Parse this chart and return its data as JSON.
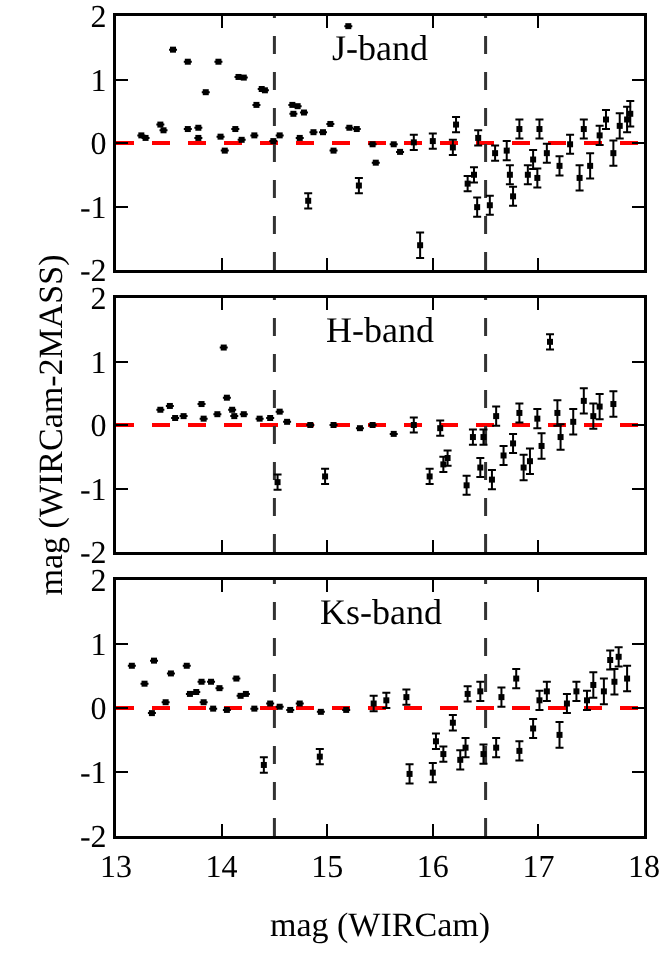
{
  "chart_data": [
    {
      "type": "scatter",
      "annotations": [
        "J-band"
      ],
      "xlim": [
        13,
        18
      ],
      "xticks": [
        13,
        14,
        15,
        16,
        17,
        18
      ],
      "ylim": [
        -2,
        2
      ],
      "yticks": [
        -2,
        -1,
        0,
        1,
        2
      ],
      "tick_labels": "y",
      "marker": "square",
      "ref_lines": [
        {
          "axis": "y",
          "value": 0,
          "color": "#ff0000",
          "line_style": "dashed"
        },
        {
          "axis": "x",
          "value": 14.5,
          "color": "#333333",
          "line_style": "dashed"
        },
        {
          "axis": "x",
          "value": 16.5,
          "color": "#333333",
          "line_style": "dashed"
        }
      ],
      "x": [
        13.24,
        13.28,
        13.42,
        13.45,
        13.54,
        13.68,
        13.68,
        13.78,
        13.78,
        13.85,
        13.97,
        13.99,
        14.03,
        14.13,
        14.16,
        14.21,
        14.19,
        14.33,
        14.38,
        14.41,
        14.31,
        14.49,
        14.55,
        14.67,
        14.72,
        14.68,
        14.78,
        14.74,
        14.82,
        14.87,
        14.96,
        15.03,
        15.06,
        15.2,
        15.21,
        15.28,
        15.3,
        15.43,
        15.46,
        15.63,
        15.69,
        15.82,
        15.88,
        16.0,
        16.19,
        16.22,
        16.33,
        16.39,
        16.42,
        16.43,
        16.54,
        16.59,
        16.7,
        16.73,
        16.76,
        16.82,
        16.9,
        16.95,
        16.99,
        17.01,
        17.08,
        17.2,
        17.3,
        17.39,
        17.43,
        17.49,
        17.58,
        17.64,
        17.71,
        17.77,
        17.84,
        17.87
      ],
      "series": [
        {
          "color": "#000000",
          "values": [
            0.12,
            0.08,
            0.29,
            0.2,
            1.47,
            1.28,
            0.22,
            0.24,
            0.08,
            0.8,
            1.28,
            0.1,
            -0.12,
            0.22,
            1.04,
            1.03,
            0.05,
            0.6,
            0.85,
            0.83,
            0.12,
            0.03,
            0.12,
            0.6,
            0.58,
            0.46,
            0.48,
            0.08,
            -0.91,
            0.17,
            0.17,
            0.3,
            -0.12,
            1.84,
            0.24,
            0.22,
            -0.67,
            -0.02,
            -0.31,
            -0.02,
            -0.14,
            0.01,
            -1.61,
            0.03,
            -0.07,
            0.29,
            -0.64,
            -0.5,
            -1.01,
            0.08,
            -0.98,
            -0.16,
            -0.12,
            -0.5,
            -0.84,
            0.22,
            -0.5,
            -0.26,
            -0.55,
            0.22,
            -0.16,
            -0.36,
            -0.02,
            -0.55,
            0.22,
            -0.36,
            0.12,
            0.37,
            -0.16,
            0.27,
            0.37,
            0.46
          ],
          "errors": [
            null,
            null,
            null,
            null,
            null,
            null,
            null,
            null,
            null,
            null,
            null,
            null,
            null,
            null,
            null,
            null,
            null,
            null,
            null,
            null,
            null,
            null,
            null,
            null,
            null,
            null,
            null,
            null,
            0.12,
            null,
            null,
            null,
            null,
            null,
            null,
            null,
            0.12,
            null,
            null,
            null,
            null,
            0.12,
            0.2,
            0.12,
            0.12,
            0.12,
            0.12,
            0.12,
            0.15,
            0.12,
            0.15,
            0.12,
            0.15,
            0.15,
            0.15,
            0.15,
            0.15,
            0.15,
            0.15,
            0.15,
            0.15,
            0.15,
            0.15,
            0.2,
            0.15,
            0.2,
            0.15,
            0.15,
            0.2,
            0.2,
            0.2,
            0.2
          ]
        }
      ]
    },
    {
      "type": "scatter",
      "annotations": [
        "H-band"
      ],
      "ylabel": "mag (WIRCam-2MASS)",
      "xlim": [
        13,
        18
      ],
      "xticks": [
        13,
        14,
        15,
        16,
        17,
        18
      ],
      "ylim": [
        -2,
        2
      ],
      "yticks": [
        -2,
        -1,
        0,
        1,
        2
      ],
      "tick_labels": "y",
      "marker": "square",
      "ref_lines": [
        {
          "axis": "y",
          "value": 0,
          "color": "#ff0000",
          "line_style": "dashed"
        },
        {
          "axis": "x",
          "value": 14.5,
          "color": "#333333",
          "line_style": "dashed"
        },
        {
          "axis": "x",
          "value": 16.5,
          "color": "#333333",
          "line_style": "dashed"
        }
      ],
      "x": [
        13.42,
        13.51,
        13.56,
        13.64,
        13.81,
        13.83,
        14.02,
        13.96,
        14.05,
        14.1,
        14.12,
        14.21,
        14.36,
        14.46,
        14.53,
        14.55,
        14.62,
        14.84,
        14.98,
        15.06,
        15.31,
        15.43,
        15.63,
        15.82,
        15.97,
        16.07,
        16.1,
        16.14,
        16.32,
        16.38,
        16.45,
        16.48,
        16.56,
        16.6,
        16.67,
        16.76,
        16.82,
        16.86,
        16.92,
        16.99,
        17.03,
        17.11,
        17.18,
        17.21,
        17.33,
        17.43,
        17.52,
        17.58,
        17.71
      ],
      "series": [
        {
          "color": "#000000",
          "values": [
            0.24,
            0.3,
            0.11,
            0.14,
            0.33,
            0.1,
            1.22,
            0.17,
            0.43,
            0.24,
            0.14,
            0.17,
            0.1,
            0.11,
            -0.9,
            0.21,
            0.05,
            0,
            -0.81,
            0,
            -0.05,
            0,
            -0.14,
            0,
            -0.81,
            -0.05,
            -0.62,
            -0.52,
            -0.95,
            -0.19,
            -0.67,
            -0.19,
            -0.86,
            0.14,
            -0.48,
            -0.29,
            0.19,
            -0.67,
            -0.57,
            0.1,
            -0.33,
            1.31,
            0.19,
            -0.19,
            0.05,
            0.38,
            0.14,
            0.29,
            0.33
          ],
          "errors": [
            null,
            null,
            null,
            null,
            null,
            null,
            null,
            null,
            null,
            null,
            null,
            null,
            null,
            null,
            0.12,
            null,
            null,
            null,
            0.12,
            null,
            null,
            null,
            null,
            0.12,
            0.12,
            0.12,
            0.12,
            0.12,
            0.15,
            0.12,
            0.15,
            0.12,
            0.15,
            0.15,
            0.15,
            0.15,
            0.15,
            0.2,
            0.2,
            0.15,
            0.2,
            0.12,
            0.2,
            0.2,
            0.2,
            0.2,
            0.2,
            0.2,
            0.2
          ]
        }
      ]
    },
    {
      "type": "scatter",
      "annotations": [
        "Ks-band"
      ],
      "xlabel": "mag (WIRCam)",
      "xlim": [
        13,
        18
      ],
      "xticks": [
        13,
        14,
        15,
        16,
        17,
        18
      ],
      "ylim": [
        -2,
        2
      ],
      "yticks": [
        -2,
        -1,
        0,
        1,
        2
      ],
      "marker": "square",
      "ref_lines": [
        {
          "axis": "y",
          "value": 0,
          "color": "#ff0000",
          "line_style": "dashed"
        },
        {
          "axis": "x",
          "value": 14.5,
          "color": "#333333",
          "line_style": "dashed"
        },
        {
          "axis": "x",
          "value": 16.5,
          "color": "#333333",
          "line_style": "dashed"
        }
      ],
      "x": [
        13.15,
        13.27,
        13.36,
        13.34,
        13.47,
        13.52,
        13.67,
        13.7,
        13.76,
        13.81,
        13.83,
        13.9,
        13.92,
        13.98,
        14.05,
        14.14,
        14.18,
        14.23,
        14.31,
        14.4,
        14.46,
        14.55,
        14.65,
        14.74,
        14.93,
        14.94,
        15.18,
        15.44,
        15.56,
        15.75,
        15.78,
        16.0,
        16.03,
        16.1,
        16.19,
        16.26,
        16.31,
        16.33,
        16.45,
        16.48,
        16.6,
        16.65,
        16.79,
        16.82,
        16.95,
        17.01,
        17.08,
        17.2,
        17.27,
        17.36,
        17.46,
        17.52,
        17.62,
        17.68,
        17.72,
        17.76,
        17.84
      ],
      "series": [
        {
          "color": "#000000",
          "values": [
            0.66,
            0.38,
            0.74,
            -0.08,
            0.09,
            0.54,
            0.66,
            0.22,
            0.25,
            0.41,
            0.09,
            0.41,
            -0.01,
            0.31,
            -0.03,
            0.46,
            0.19,
            0.22,
            -0.01,
            -0.89,
            0.07,
            0.02,
            -0.03,
            0.07,
            -0.76,
            -0.06,
            -0.03,
            0.07,
            0.12,
            0.17,
            -1.03,
            -1.01,
            -0.52,
            -0.72,
            -0.23,
            -0.81,
            -0.62,
            0.22,
            0.26,
            -0.72,
            -0.62,
            0.17,
            0.46,
            -0.67,
            -0.32,
            0.12,
            0.26,
            -0.42,
            0.07,
            0.26,
            0.12,
            0.36,
            0.26,
            0.75,
            0.41,
            0.8,
            0.46
          ],
          "errors": [
            null,
            null,
            null,
            null,
            null,
            null,
            null,
            null,
            null,
            null,
            null,
            null,
            null,
            null,
            null,
            null,
            null,
            null,
            null,
            0.12,
            null,
            null,
            null,
            null,
            0.12,
            null,
            null,
            0.12,
            0.12,
            0.12,
            0.15,
            0.15,
            0.12,
            0.12,
            0.12,
            0.15,
            0.15,
            0.12,
            0.15,
            0.15,
            0.15,
            0.15,
            0.15,
            0.15,
            0.15,
            0.15,
            0.15,
            0.2,
            0.15,
            0.15,
            0.15,
            0.2,
            0.2,
            0.15,
            0.2,
            0.15,
            0.2
          ]
        }
      ]
    }
  ]
}
